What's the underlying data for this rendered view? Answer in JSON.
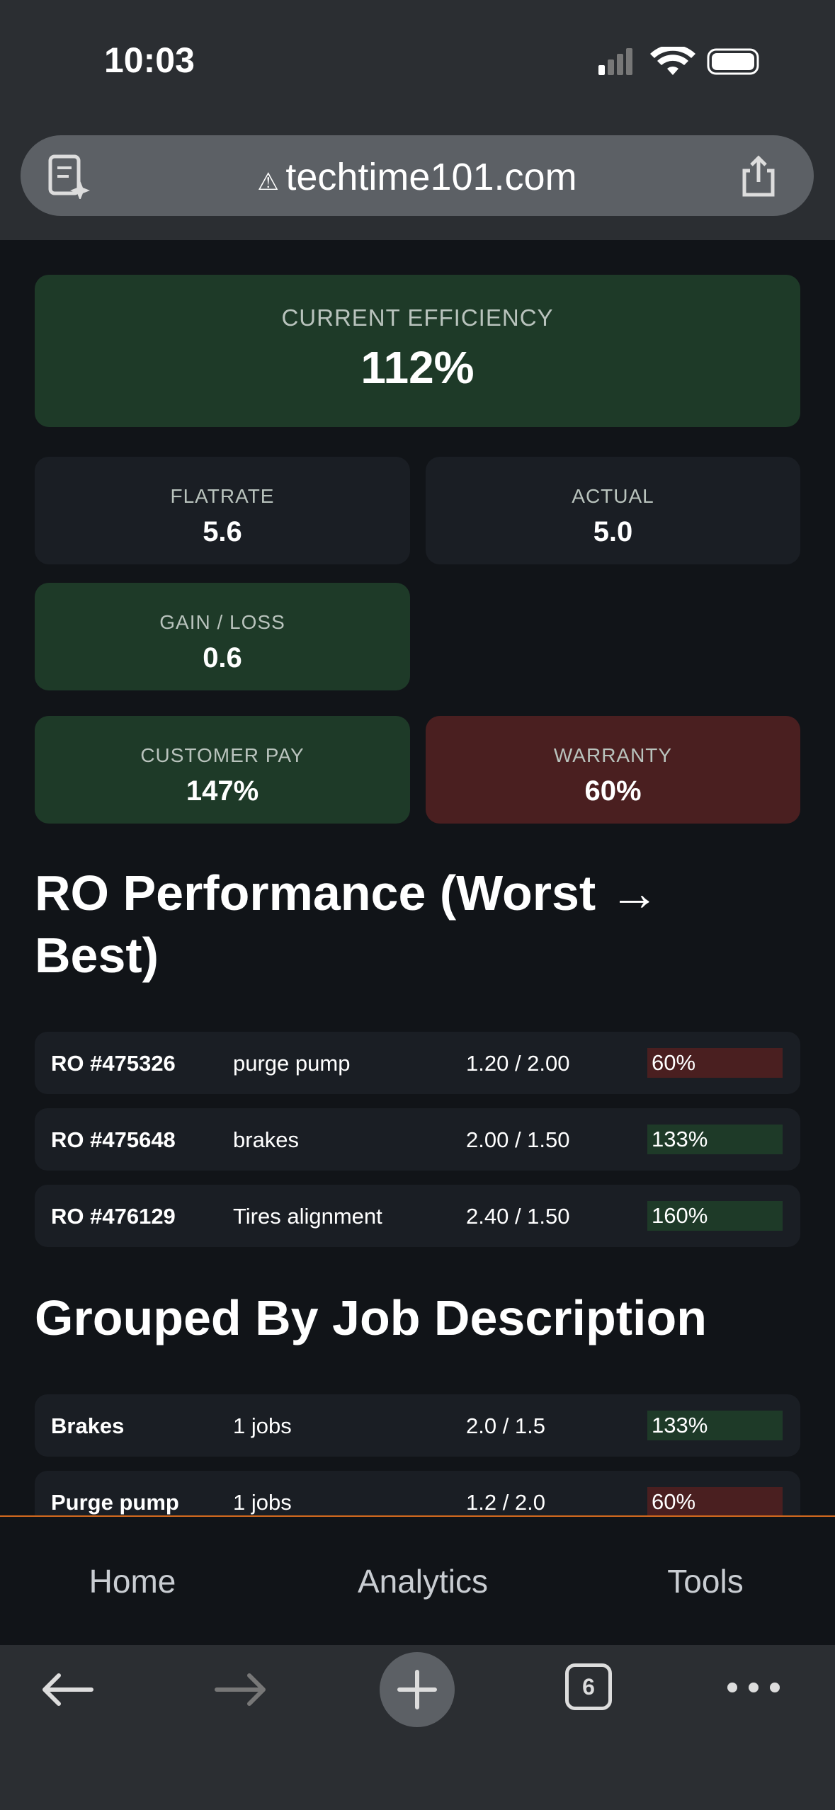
{
  "status": {
    "time": "10:03"
  },
  "browser": {
    "url": "techtime101.com",
    "tab_count": "6"
  },
  "summary": {
    "efficiency": {
      "label": "CURRENT EFFICIENCY",
      "value": "112%"
    },
    "flatrate": {
      "label": "FLATRATE",
      "value": "5.6"
    },
    "actual": {
      "label": "ACTUAL",
      "value": "5.0"
    },
    "gain_loss": {
      "label": "GAIN / LOSS",
      "value": "0.6"
    },
    "customer_pay": {
      "label": "CUSTOMER PAY",
      "value": "147%"
    },
    "warranty": {
      "label": "WARRANTY",
      "value": "60%"
    }
  },
  "ro_section": {
    "title": "RO Performance (Worst → Best)",
    "rows": [
      [
        "RO #475326",
        "purge pump",
        "1.20 / 2.00",
        "60%"
      ],
      [
        "RO #475648",
        "brakes",
        "2.00 / 1.50",
        "133%"
      ],
      [
        "RO #476129",
        "Tires alignment",
        "2.40 / 1.50",
        "160%"
      ]
    ]
  },
  "group_section": {
    "title": "Grouped By Job Description",
    "rows": [
      [
        "Brakes",
        "1 jobs",
        "2.0 / 1.5",
        "133%"
      ],
      [
        "Purge pump",
        "1 jobs",
        "1.2 / 2.0",
        "60%"
      ]
    ]
  },
  "nav": [
    "Home",
    "Analytics",
    "Tools"
  ]
}
